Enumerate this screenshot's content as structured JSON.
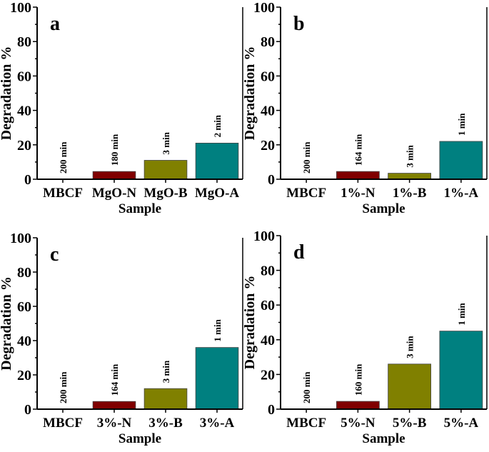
{
  "chart_data": [
    {
      "type": "bar",
      "panel_label": "a",
      "categories": [
        "MBCF",
        "MgO-N",
        "MgO-B",
        "MgO-A"
      ],
      "values": [
        0,
        4.5,
        11,
        21
      ],
      "bar_labels": [
        "200 min",
        "180 min",
        "3 min",
        "2 min"
      ],
      "xlabel": "Sample",
      "ylabel": "Degradation %",
      "ylim": [
        0,
        100
      ],
      "yticks": [
        "0",
        "20",
        "40",
        "60",
        "80",
        "100"
      ],
      "colors": [
        "#800000",
        "#800000",
        "#808000",
        "#008080"
      ],
      "grid": false
    },
    {
      "type": "bar",
      "panel_label": "b",
      "categories": [
        "MBCF",
        "1%-N",
        "1%-B",
        "1%-A"
      ],
      "values": [
        0,
        4.5,
        3.5,
        22
      ],
      "bar_labels": [
        "200 min",
        "164 min",
        "3 min",
        "1 min"
      ],
      "xlabel": "Sample",
      "ylabel": "Degradation %",
      "ylim": [
        0,
        100
      ],
      "yticks": [
        "0",
        "20",
        "40",
        "60",
        "80",
        "100"
      ],
      "colors": [
        "#800000",
        "#800000",
        "#808000",
        "#008080"
      ],
      "grid": false
    },
    {
      "type": "bar",
      "panel_label": "c",
      "categories": [
        "MBCF",
        "3%-N",
        "3%-B",
        "3%-A"
      ],
      "values": [
        0,
        4.5,
        12,
        36
      ],
      "bar_labels": [
        "200 min",
        "164 min",
        "3 min",
        "1 min"
      ],
      "xlabel": "Sample",
      "ylabel": "Degradation %",
      "ylim": [
        0,
        100
      ],
      "yticks": [
        "0",
        "20",
        "40",
        "60",
        "80",
        "100"
      ],
      "colors": [
        "#800000",
        "#800000",
        "#808000",
        "#008080"
      ],
      "grid": false
    },
    {
      "type": "bar",
      "panel_label": "d",
      "categories": [
        "MBCF",
        "5%-N",
        "5%-B",
        "5%-A"
      ],
      "values": [
        0,
        4.5,
        26,
        45
      ],
      "bar_labels": [
        "200 min",
        "160 min",
        "3 min",
        "1 min"
      ],
      "xlabel": "Sample",
      "ylabel": "Degradation %",
      "ylim": [
        0,
        100
      ],
      "yticks": [
        "0",
        "20",
        "40",
        "60",
        "80",
        "100"
      ],
      "colors": [
        "#800000",
        "#800000",
        "#808000",
        "#008080"
      ],
      "grid": false
    }
  ]
}
